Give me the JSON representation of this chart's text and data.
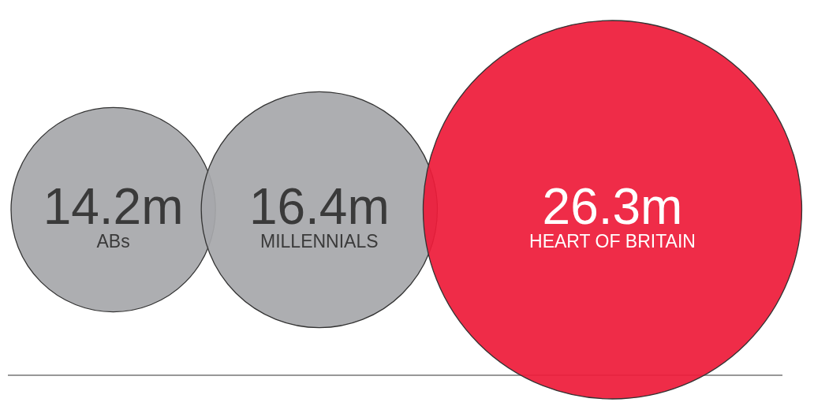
{
  "chart_data": {
    "type": "other",
    "categories": [
      "ABs",
      "MILLENNIALS",
      "HEART OF BRITAIN"
    ],
    "values": [
      14.2,
      16.4,
      26.3
    ],
    "value_labels": [
      "14.2m",
      "16.4m",
      "26.3m"
    ],
    "colors": [
      "#a7a8ab",
      "#a7a8ab",
      "#ee1c3a"
    ]
  }
}
